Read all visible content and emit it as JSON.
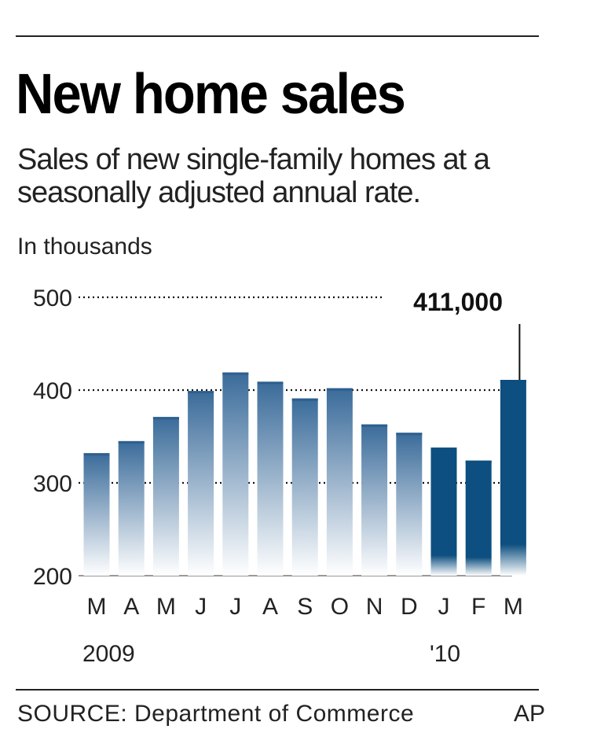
{
  "header": {
    "title": "New home sales",
    "subtitle": "Sales of new single-family homes at a seasonally adjusted annual rate.",
    "unit_label": "In thousands"
  },
  "footer": {
    "source": "SOURCE: Department of Commerce",
    "credit": "AP"
  },
  "colors": {
    "bar_gradient_top": "#3a6b9a",
    "bar_gradient_bottom": "#ffffff",
    "highlight_bar": "#0d4f80",
    "rule": "#222222",
    "gridline": "#111111"
  },
  "chart_data": {
    "type": "bar",
    "title": "New home sales",
    "categories": [
      "M",
      "A",
      "M",
      "J",
      "J",
      "A",
      "S",
      "O",
      "N",
      "D",
      "J",
      "F",
      "M"
    ],
    "year_labels": [
      {
        "label": "2009",
        "category_index": 0
      },
      {
        "label": "'10",
        "category_index": 10
      }
    ],
    "series": [
      {
        "values": [
          332,
          345,
          371,
          399,
          419,
          409,
          391,
          402,
          363,
          354,
          338,
          324,
          411
        ]
      }
    ],
    "highlighted_indices": [
      10,
      11,
      12
    ],
    "y_ticks": [
      200,
      300,
      400,
      500
    ],
    "ylim": [
      200,
      500
    ],
    "grid": "dotted horizontal",
    "annotation": {
      "text": "411,000",
      "category_index": 12
    }
  }
}
